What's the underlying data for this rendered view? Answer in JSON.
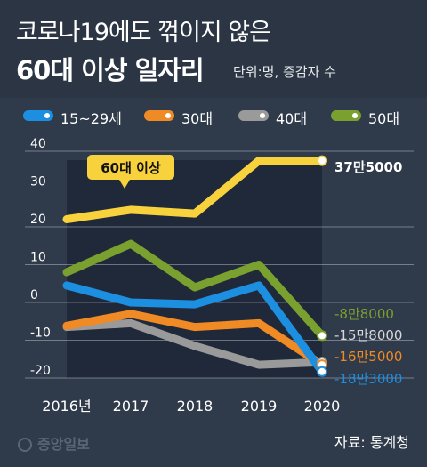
{
  "header": {
    "title_line1": "코로나19에도 꺾이지 않은",
    "title_line2": "60대 이상 일자리",
    "unit": "단위:명, 증감자 수"
  },
  "footer": {
    "logo": "중앙일보",
    "source": "자료: 통계청"
  },
  "colors": {
    "background": "#2f3a4a",
    "highlight_band": "#20293a",
    "age_60plus": "#f7d23c",
    "age_15_29": "#1d8fe0",
    "age_30s": "#f08a24",
    "age_40s": "#9a9a9a",
    "age_50s": "#7aa12f"
  },
  "chart_data": {
    "type": "line",
    "title": "코로나19에도 꺾이지 않은 60대 이상 일자리",
    "x": [
      "2016년",
      "2017",
      "2018",
      "2019",
      "2020"
    ],
    "ylim": [
      -20,
      40
    ],
    "yticks": [
      "40",
      "30",
      "20",
      "10",
      "0",
      "-10",
      "-20"
    ],
    "grid": true,
    "legend_position": "top",
    "series": [
      {
        "name": "15~29세",
        "color": "#1d8fe0",
        "values": [
          4.5,
          0,
          -0.5,
          4.5,
          -18.3
        ]
      },
      {
        "name": "30대",
        "color": "#f08a24",
        "values": [
          -6.2,
          -3,
          -6.5,
          -5.5,
          -16.5
        ]
      },
      {
        "name": "40대",
        "color": "#9a9a9a",
        "values": [
          -6.5,
          -5.5,
          -11.5,
          -16.5,
          -15.8
        ]
      },
      {
        "name": "50대",
        "color": "#7aa12f",
        "values": [
          8,
          15.5,
          4,
          10,
          -8.8
        ]
      },
      {
        "name": "60대 이상",
        "color": "#f7d23c",
        "values": [
          22,
          24.5,
          23.5,
          37.5,
          37.5
        ]
      }
    ],
    "annotations": {
      "callout": "60대 이상",
      "end_labels": [
        "37만5000",
        "-8만8000",
        "-15만8000",
        "-16만5000",
        "-18만3000"
      ]
    }
  }
}
